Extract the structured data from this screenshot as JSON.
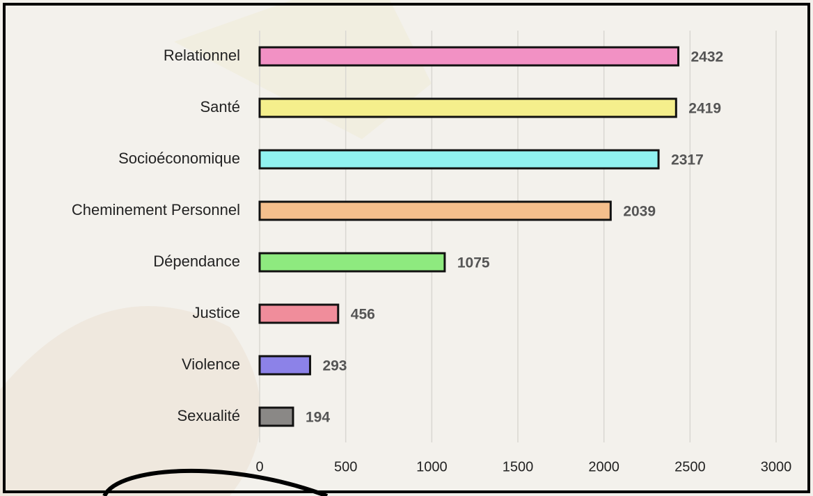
{
  "chart_data": {
    "type": "bar",
    "orientation": "horizontal",
    "categories": [
      "Relationnel",
      "Santé",
      "Socioéconomique",
      "Cheminement Personnel",
      "Dépendance",
      "Justice",
      "Violence",
      "Sexualité"
    ],
    "values": [
      2432,
      2419,
      2317,
      2039,
      1075,
      456,
      293,
      194
    ],
    "colors": [
      "#f291c4",
      "#f5ef8c",
      "#90f2f0",
      "#f5bf8c",
      "#8eea7f",
      "#f08d9b",
      "#8c82e8",
      "#8a8886"
    ],
    "xlim": [
      0,
      3000
    ],
    "xticks": [
      0,
      500,
      1000,
      1500,
      2000,
      2500,
      3000
    ],
    "grid": true
  }
}
